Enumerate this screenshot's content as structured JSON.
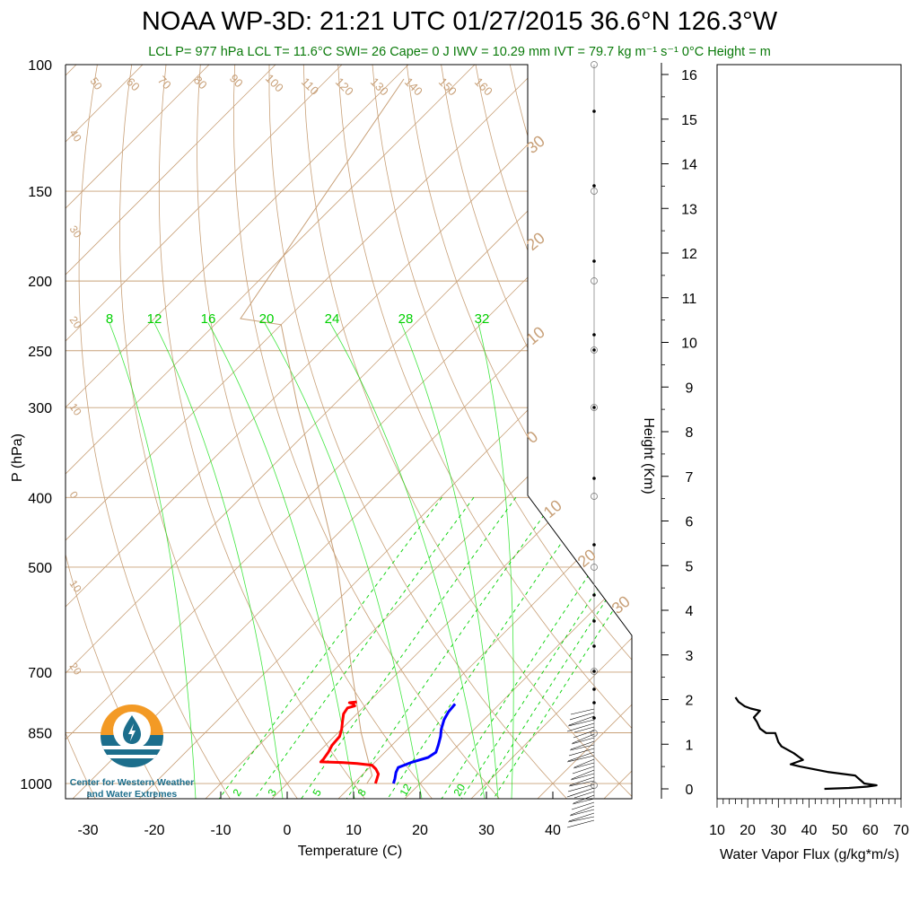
{
  "title": "NOAA WP-3D: 21:21 UTC 01/27/2015  36.6°N 126.3°W",
  "subtitle": "LCL P= 977 hPa  LCL T= 11.6°C  SWI= 26  Cape= 0 J  IWV = 10.29 mm  IVT = 79.7 kg m⁻¹ s⁻¹  0°C Height =  m",
  "logo": {
    "line1": "Center for Western Weather",
    "line2": "and Water Extremes"
  },
  "colors": {
    "temperature": "#ff0000",
    "dewpoint": "#0000ff",
    "dry_adiabat": "#c8a078",
    "mixing_ratio": "#00d000",
    "moist_adiabat": "#00dd00",
    "parcel": "#c8a078",
    "logo_orange": "#f39a25",
    "logo_blue": "#1c6e8c"
  },
  "chart_data": [
    {
      "type": "line",
      "chart": "skew-T log-P sounding",
      "xlabel": "Temperature (C)",
      "ylabel": "P (hPa)",
      "xticks": [
        "-30",
        "-20",
        "-10",
        "0",
        "10",
        "20",
        "30",
        "40"
      ],
      "yticks": [
        "100",
        "150",
        "200",
        "250",
        "300",
        "400",
        "500",
        "700",
        "850",
        "1000"
      ],
      "ylim_hPa": [
        1050,
        100
      ],
      "y_scale": "log",
      "mixing_ratio_labels": [
        "8",
        "12",
        "16",
        "20",
        "24",
        "28",
        "32"
      ],
      "mixing_ratio_bottom_labels": [
        "2",
        "3",
        "5",
        "8",
        "12",
        "20"
      ],
      "isotherm_labels_left": [
        "50",
        "40",
        "30",
        "20",
        "10",
        "0",
        "10",
        "20"
      ],
      "isotherm_labels_top": [
        "60",
        "70",
        "80",
        "90",
        "100",
        "110",
        "120",
        "130",
        "140",
        "150",
        "160"
      ],
      "isotherm_labels_right": [
        "30",
        "20",
        "10",
        "0",
        "10",
        "20",
        "30"
      ],
      "series": [
        {
          "name": "Temperature",
          "points": [
            [
              13.3,
              1000
            ],
            [
              12.8,
              985
            ],
            [
              12.3,
              970
            ],
            [
              11.2,
              955
            ],
            [
              10.0,
              943
            ],
            [
              7.5,
              938
            ],
            [
              5.0,
              935
            ],
            [
              1.8,
              933
            ],
            [
              1.8,
              925
            ],
            [
              1.5,
              905
            ],
            [
              1.0,
              885
            ],
            [
              0.8,
              860
            ],
            [
              0.0,
              840
            ],
            [
              -1.0,
              820
            ],
            [
              -2.0,
              800
            ],
            [
              -2.3,
              785
            ],
            [
              -1.5,
              780
            ],
            [
              -2.0,
              775
            ],
            [
              -2.8,
              772
            ],
            [
              -1.8,
              770
            ]
          ]
        },
        {
          "name": "Dewpoint",
          "points": [
            [
              16.0,
              1000
            ],
            [
              15.5,
              985
            ],
            [
              14.7,
              965
            ],
            [
              14.3,
              950
            ],
            [
              15.5,
              935
            ],
            [
              17.3,
              920
            ],
            [
              17.7,
              905
            ],
            [
              17.0,
              885
            ],
            [
              16.0,
              860
            ],
            [
              15.0,
              840
            ],
            [
              14.0,
              815
            ],
            [
              13.5,
              795
            ],
            [
              13.3,
              775
            ]
          ]
        }
      ]
    },
    {
      "type": "line",
      "chart": "height scale",
      "ylabel": "Height (Km)",
      "yticks": [
        "0",
        "1",
        "2",
        "3",
        "4",
        "5",
        "6",
        "7",
        "8",
        "9",
        "10",
        "11",
        "12",
        "13",
        "14",
        "15",
        "16"
      ]
    },
    {
      "type": "line",
      "chart": "water vapor flux profile",
      "xlabel": "Water Vapor Flux (g/kg*m/s)",
      "xticks": [
        "10",
        "20",
        "30",
        "40",
        "50",
        "60",
        "70"
      ],
      "xlim": [
        10,
        70
      ],
      "ylim_km": [
        -0.2,
        16.4
      ],
      "series": [
        {
          "name": "Water Vapor Flux",
          "points": [
            [
              45,
              0.0
            ],
            [
              53,
              0.02
            ],
            [
              59,
              0.05
            ],
            [
              62,
              0.08
            ],
            [
              58,
              0.12
            ],
            [
              57,
              0.18
            ],
            [
              55,
              0.3
            ],
            [
              46,
              0.38
            ],
            [
              37,
              0.5
            ],
            [
              34,
              0.55
            ],
            [
              38,
              0.65
            ],
            [
              35,
              0.8
            ],
            [
              31,
              0.95
            ],
            [
              30,
              1.05
            ],
            [
              29,
              1.25
            ],
            [
              26,
              1.25
            ],
            [
              24,
              1.35
            ],
            [
              23,
              1.5
            ],
            [
              22,
              1.6
            ],
            [
              24,
              1.75
            ],
            [
              21,
              1.8
            ],
            [
              19,
              1.85
            ],
            [
              17,
              1.95
            ],
            [
              16,
              2.05
            ]
          ]
        }
      ]
    }
  ]
}
